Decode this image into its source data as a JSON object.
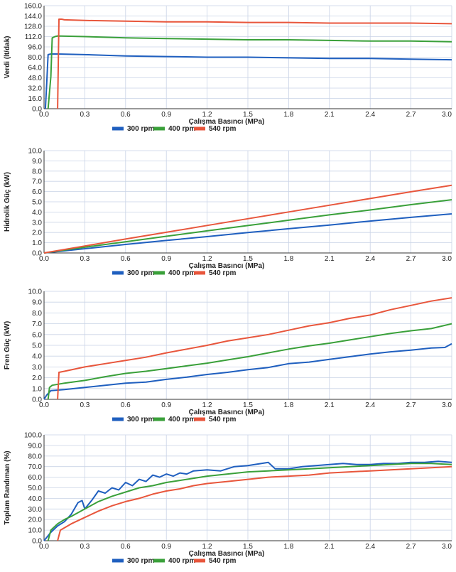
{
  "chart_data": [
    {
      "type": "line",
      "ylabel": "Verdi (lt/dak)",
      "xlabel": "Çalışma Basıncı (MPa)",
      "xlim": [
        0,
        3.0
      ],
      "ylim": [
        0,
        160
      ],
      "xticks": [
        "0.0",
        "0.3",
        "0.6",
        "0.9",
        "1.2",
        "1.5",
        "1.8",
        "2.1",
        "2.4",
        "2.7",
        "3.0"
      ],
      "yticks": [
        "0.0",
        "16.0",
        "32.0",
        "48.0",
        "64.0",
        "80.0",
        "96.0",
        "112.0",
        "128.0",
        "144.0",
        "160.0"
      ],
      "grid": true,
      "legend_position": "bottom",
      "series": [
        {
          "name": "300 rpm",
          "color": "#1f5fbf",
          "x": [
            0.01,
            0.02,
            0.03,
            0.05,
            0.1,
            0.3,
            0.6,
            0.9,
            1.2,
            1.5,
            1.8,
            2.1,
            2.4,
            2.7,
            3.0
          ],
          "y": [
            0,
            40,
            84,
            85,
            85,
            84,
            82,
            81,
            80,
            80,
            79,
            78,
            78,
            77,
            76
          ]
        },
        {
          "name": "400 rpm",
          "color": "#3aa03a",
          "x": [
            0.03,
            0.05,
            0.06,
            0.08,
            0.1,
            0.3,
            0.6,
            0.9,
            1.2,
            1.5,
            1.8,
            2.1,
            2.4,
            2.7,
            3.0
          ],
          "y": [
            0,
            50,
            110,
            112,
            113,
            112,
            110,
            109,
            108,
            107,
            107,
            106,
            105,
            105,
            104
          ]
        },
        {
          "name": "540 rpm",
          "color": "#e8563c",
          "x": [
            0.1,
            0.11,
            0.13,
            0.15,
            0.3,
            0.6,
            0.9,
            1.2,
            1.5,
            1.8,
            2.1,
            2.4,
            2.7,
            3.0
          ],
          "y": [
            0,
            139,
            139,
            138,
            137,
            136,
            135,
            135,
            134,
            134,
            133,
            133,
            133,
            132
          ]
        }
      ]
    },
    {
      "type": "line",
      "ylabel": "Hidrolik Güç (kW)",
      "xlabel": "Çalışma Basıncı (MPa)",
      "xlim": [
        0,
        3.0
      ],
      "ylim": [
        0,
        10
      ],
      "xticks": [
        "0.0",
        "0.3",
        "0.6",
        "0.9",
        "1.2",
        "1.5",
        "1.8",
        "2.1",
        "2.4",
        "2.7",
        "3.0"
      ],
      "yticks": [
        "0.0",
        "1.0",
        "2.0",
        "3.0",
        "4.0",
        "5.0",
        "6.0",
        "7.0",
        "8.0",
        "9.0",
        "10.0"
      ],
      "grid": true,
      "legend_position": "bottom",
      "series": [
        {
          "name": "300 rpm",
          "color": "#1f5fbf",
          "x": [
            0.0,
            0.3,
            0.6,
            0.9,
            1.2,
            1.5,
            1.8,
            2.1,
            2.4,
            2.7,
            3.0
          ],
          "y": [
            0.0,
            0.42,
            0.83,
            1.22,
            1.6,
            1.99,
            2.37,
            2.73,
            3.12,
            3.48,
            3.82
          ]
        },
        {
          "name": "400 rpm",
          "color": "#3aa03a",
          "x": [
            0.0,
            0.3,
            0.6,
            0.9,
            1.2,
            1.5,
            1.8,
            2.1,
            2.4,
            2.7,
            3.0
          ],
          "y": [
            0.0,
            0.56,
            1.1,
            1.63,
            2.16,
            2.68,
            3.2,
            3.72,
            4.2,
            4.72,
            5.2
          ]
        },
        {
          "name": "540 rpm",
          "color": "#e8563c",
          "x": [
            0.0,
            0.3,
            0.6,
            0.9,
            1.2,
            1.5,
            1.8,
            2.1,
            2.4,
            2.7,
            3.0
          ],
          "y": [
            0.0,
            0.68,
            1.36,
            2.02,
            2.69,
            3.35,
            4.01,
            4.67,
            5.32,
            5.98,
            6.62
          ]
        }
      ]
    },
    {
      "type": "line",
      "ylabel": "Fren Güç (kW)",
      "xlabel": "Çalışma Basıncı (MPa)",
      "xlim": [
        0,
        3.0
      ],
      "ylim": [
        0,
        10
      ],
      "xticks": [
        "0.0",
        "0.3",
        "0.6",
        "0.9",
        "1.2",
        "1.5",
        "1.8",
        "2.1",
        "2.4",
        "2.7",
        "3.0"
      ],
      "yticks": [
        "0.0",
        "1.0",
        "2.0",
        "3.0",
        "4.0",
        "5.0",
        "6.0",
        "7.0",
        "8.0",
        "9.0",
        "10.0"
      ],
      "grid": true,
      "legend_position": "bottom",
      "series": [
        {
          "name": "300 rpm",
          "color": "#1f5fbf",
          "x": [
            0.0,
            0.02,
            0.05,
            0.15,
            0.3,
            0.45,
            0.6,
            0.75,
            0.9,
            1.05,
            1.2,
            1.35,
            1.5,
            1.65,
            1.8,
            1.95,
            2.1,
            2.25,
            2.4,
            2.55,
            2.7,
            2.85,
            2.95,
            3.0
          ],
          "y": [
            0.0,
            0.4,
            0.8,
            0.9,
            1.1,
            1.3,
            1.5,
            1.6,
            1.85,
            2.05,
            2.3,
            2.5,
            2.75,
            2.95,
            3.3,
            3.45,
            3.7,
            3.95,
            4.2,
            4.4,
            4.55,
            4.75,
            4.8,
            5.15
          ]
        },
        {
          "name": "400 rpm",
          "color": "#3aa03a",
          "x": [
            0.03,
            0.04,
            0.06,
            0.15,
            0.3,
            0.45,
            0.6,
            0.75,
            0.9,
            1.05,
            1.2,
            1.35,
            1.5,
            1.65,
            1.8,
            1.95,
            2.1,
            2.25,
            2.4,
            2.55,
            2.7,
            2.85,
            3.0
          ],
          "y": [
            0.0,
            1.1,
            1.3,
            1.5,
            1.75,
            2.1,
            2.4,
            2.6,
            2.85,
            3.1,
            3.35,
            3.65,
            3.95,
            4.3,
            4.65,
            4.95,
            5.2,
            5.5,
            5.8,
            6.1,
            6.35,
            6.55,
            7.0
          ]
        },
        {
          "name": "540 rpm",
          "color": "#e8563c",
          "x": [
            0.1,
            0.11,
            0.15,
            0.3,
            0.45,
            0.6,
            0.75,
            0.9,
            1.05,
            1.2,
            1.35,
            1.5,
            1.65,
            1.8,
            1.95,
            2.1,
            2.25,
            2.4,
            2.55,
            2.7,
            2.85,
            3.0
          ],
          "y": [
            0.0,
            2.5,
            2.6,
            3.0,
            3.3,
            3.6,
            3.9,
            4.3,
            4.65,
            5.0,
            5.4,
            5.7,
            6.0,
            6.4,
            6.8,
            7.1,
            7.5,
            7.8,
            8.3,
            8.7,
            9.1,
            9.4
          ]
        }
      ]
    },
    {
      "type": "line",
      "ylabel": "Toplam Randıman (%)",
      "xlabel": "Çalışma Basıncı (MPa)",
      "xlim": [
        0,
        3.0
      ],
      "ylim": [
        0,
        100
      ],
      "xticks": [
        "0.0",
        "0.3",
        "0.6",
        "0.9",
        "1.2",
        "1.5",
        "1.8",
        "2.1",
        "2.4",
        "2.7",
        "3.0"
      ],
      "yticks": [
        "0.0",
        "10.0",
        "20.0",
        "30.0",
        "40.0",
        "50.0",
        "60.0",
        "70.0",
        "80.0",
        "90.0",
        "100.0"
      ],
      "grid": true,
      "legend_position": "bottom",
      "series": [
        {
          "name": "300 rpm",
          "color": "#1f5fbf",
          "x": [
            0.0,
            0.05,
            0.1,
            0.15,
            0.2,
            0.25,
            0.28,
            0.3,
            0.35,
            0.4,
            0.45,
            0.5,
            0.55,
            0.6,
            0.65,
            0.7,
            0.75,
            0.8,
            0.85,
            0.9,
            0.95,
            1.0,
            1.05,
            1.1,
            1.2,
            1.3,
            1.4,
            1.5,
            1.6,
            1.65,
            1.7,
            1.8,
            1.9,
            2.0,
            2.1,
            2.2,
            2.3,
            2.4,
            2.5,
            2.6,
            2.7,
            2.8,
            2.9,
            3.0
          ],
          "y": [
            0,
            8,
            14,
            18,
            25,
            36,
            38,
            30,
            38,
            47,
            45,
            50,
            48,
            55,
            52,
            58,
            56,
            62,
            60,
            63,
            61,
            64,
            63,
            66,
            67,
            66,
            70,
            71,
            73,
            74,
            68,
            68,
            70,
            71,
            72,
            73,
            72,
            72,
            73,
            73,
            74,
            74,
            75,
            74
          ]
        },
        {
          "name": "400 rpm",
          "color": "#3aa03a",
          "x": [
            0.03,
            0.05,
            0.1,
            0.15,
            0.2,
            0.3,
            0.4,
            0.5,
            0.6,
            0.7,
            0.8,
            0.9,
            1.0,
            1.1,
            1.2,
            1.35,
            1.5,
            1.65,
            1.8,
            1.95,
            2.1,
            2.25,
            2.4,
            2.55,
            2.7,
            2.85,
            3.0
          ],
          "y": [
            0,
            10,
            16,
            20,
            23,
            30,
            37,
            42,
            46,
            50,
            52,
            55,
            57,
            59,
            61,
            63,
            65,
            66,
            67,
            68,
            69,
            70,
            71,
            72,
            73,
            73,
            72
          ]
        },
        {
          "name": "540 rpm",
          "color": "#e8563c",
          "x": [
            0.1,
            0.12,
            0.2,
            0.3,
            0.4,
            0.5,
            0.6,
            0.7,
            0.8,
            0.9,
            1.0,
            1.1,
            1.2,
            1.35,
            1.5,
            1.65,
            1.8,
            1.95,
            2.1,
            2.25,
            2.4,
            2.55,
            2.7,
            2.85,
            3.0
          ],
          "y": [
            0,
            10,
            16,
            22,
            28,
            33,
            37,
            40,
            44,
            47,
            49,
            52,
            54,
            56,
            58,
            60,
            61,
            62,
            64,
            65,
            66,
            67,
            68,
            69,
            70
          ]
        }
      ]
    }
  ]
}
